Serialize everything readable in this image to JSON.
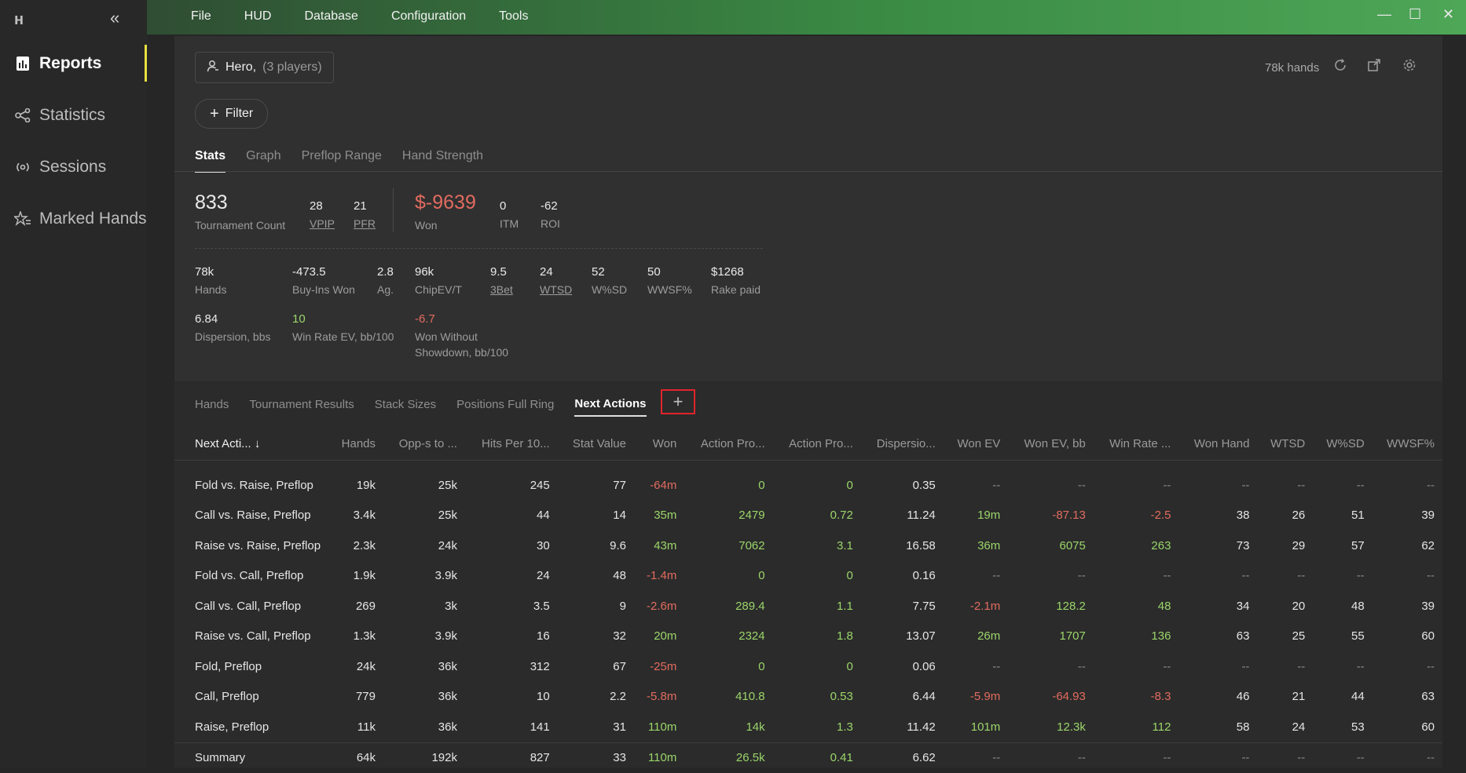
{
  "sidebar": {
    "logo": "ʜ",
    "collapse": "«",
    "items": [
      {
        "label": "Reports",
        "icon": "report-icon"
      },
      {
        "label": "Statistics",
        "icon": "share-nodes-icon"
      },
      {
        "label": "Sessions",
        "icon": "broadcast-icon"
      },
      {
        "label": "Marked Hands",
        "icon": "star-list-icon"
      }
    ]
  },
  "menu": [
    "File",
    "HUD",
    "Database",
    "Configuration",
    "Tools"
  ],
  "window": {
    "minimize": "—",
    "maximize": "☐",
    "close": "✕"
  },
  "header": {
    "player_name": "Hero,",
    "player_count": "(3 players)",
    "filter_label": "Filter",
    "hands_count": "78k hands"
  },
  "stats_tabs": [
    "Stats",
    "Graph",
    "Preflop Range",
    "Hand Strength"
  ],
  "stats": {
    "tournament_count": {
      "value": "833",
      "label": "Tournament Count"
    },
    "vpip": {
      "value": "28",
      "label": "VPIP"
    },
    "pfr": {
      "value": "21",
      "label": "PFR"
    },
    "won": {
      "value": "$-9639",
      "label": "Won"
    },
    "itm": {
      "value": "0",
      "label": "ITM"
    },
    "roi": {
      "value": "-62",
      "label": "ROI"
    },
    "hands": {
      "value": "78k",
      "label": "Hands"
    },
    "buyins_won": {
      "value": "-473.5",
      "label": "Buy-Ins Won"
    },
    "ag": {
      "value": "2.8",
      "label": "Ag."
    },
    "chipev": {
      "value": "96k",
      "label": "ChipEV/T"
    },
    "threebet": {
      "value": "9.5",
      "label": "3Bet"
    },
    "wtsd": {
      "value": "24",
      "label": "WTSD"
    },
    "wsd": {
      "value": "52",
      "label": "W%SD"
    },
    "wwsf": {
      "value": "50",
      "label": "WWSF%"
    },
    "rake": {
      "value": "$1268",
      "label": "Rake paid"
    },
    "dispersion": {
      "value": "6.84",
      "label": "Dispersion, bbs"
    },
    "winrate_ev": {
      "value": "10",
      "label": "Win Rate EV, bb/100"
    },
    "won_wo_sd": {
      "value": "-6.7",
      "label1": "Won Without",
      "label2": "Showdown, bb/100"
    }
  },
  "report_tabs": [
    "Hands",
    "Tournament Results",
    "Stack Sizes",
    "Positions Full Ring",
    "Next Actions"
  ],
  "add_tab": "+",
  "table": {
    "headers": [
      "Next Acti... ↓",
      "Hands",
      "Opp-s to ...",
      "Hits Per 10...",
      "Stat Value",
      "Won",
      "Action Pro...",
      "Action Pro...",
      "Dispersio...",
      "Won EV",
      "Won EV, bb",
      "Win Rate ...",
      "Won Hand",
      "WTSD",
      "W%SD",
      "WWSF%"
    ],
    "rows": [
      [
        "Fold vs. Raise, Preflop",
        "19k",
        "25k",
        "245",
        "77",
        "-64m",
        "0",
        "0",
        "0.35",
        "--",
        "--",
        "--",
        "--",
        "--",
        "--",
        "--"
      ],
      [
        "Call vs. Raise, Preflop",
        "3.4k",
        "25k",
        "44",
        "14",
        "35m",
        "2479",
        "0.72",
        "11.24",
        "19m",
        "-87.13",
        "-2.5",
        "38",
        "26",
        "51",
        "39"
      ],
      [
        "Raise vs. Raise, Preflop",
        "2.3k",
        "24k",
        "30",
        "9.6",
        "43m",
        "7062",
        "3.1",
        "16.58",
        "36m",
        "6075",
        "263",
        "73",
        "29",
        "57",
        "62"
      ],
      [
        "Fold vs. Call, Preflop",
        "1.9k",
        "3.9k",
        "24",
        "48",
        "-1.4m",
        "0",
        "0",
        "0.16",
        "--",
        "--",
        "--",
        "--",
        "--",
        "--",
        "--"
      ],
      [
        "Call vs. Call, Preflop",
        "269",
        "3k",
        "3.5",
        "9",
        "-2.6m",
        "289.4",
        "1.1",
        "7.75",
        "-2.1m",
        "128.2",
        "48",
        "34",
        "20",
        "48",
        "39"
      ],
      [
        "Raise vs. Call, Preflop",
        "1.3k",
        "3.9k",
        "16",
        "32",
        "20m",
        "2324",
        "1.8",
        "13.07",
        "26m",
        "1707",
        "136",
        "63",
        "25",
        "55",
        "60"
      ],
      [
        "Fold, Preflop",
        "24k",
        "36k",
        "312",
        "67",
        "-25m",
        "0",
        "0",
        "0.06",
        "--",
        "--",
        "--",
        "--",
        "--",
        "--",
        "--"
      ],
      [
        "Call, Preflop",
        "779",
        "36k",
        "10",
        "2.2",
        "-5.8m",
        "410.8",
        "0.53",
        "6.44",
        "-5.9m",
        "-64.93",
        "-8.3",
        "46",
        "21",
        "44",
        "63"
      ],
      [
        "Raise, Preflop",
        "11k",
        "36k",
        "141",
        "31",
        "110m",
        "14k",
        "1.3",
        "11.42",
        "101m",
        "12.3k",
        "112",
        "58",
        "24",
        "53",
        "60"
      ]
    ],
    "summary": [
      "Summary",
      "64k",
      "192k",
      "827",
      "33",
      "110m",
      "26.5k",
      "0.41",
      "6.62",
      "--",
      "--",
      "--",
      "--",
      "--",
      "--",
      "--"
    ]
  },
  "colors": {
    "positive": "#9bd56a",
    "negative": "#e26b5f",
    "accent": "#e8e040"
  }
}
